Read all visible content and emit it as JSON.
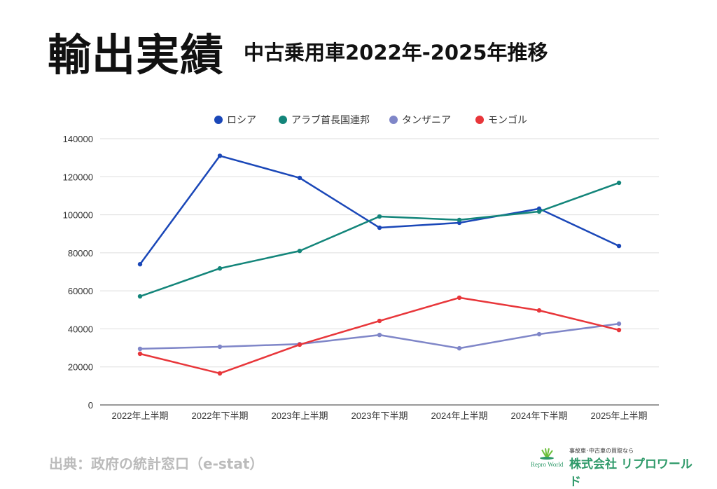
{
  "header": {
    "title": "輸出実績",
    "subtitle": "中古乗用車2022年-2025年推移"
  },
  "footer": {
    "source": "出典：政府の統計窓口（e-stat）",
    "logo_tagline": "事故車･中古車の買取なら",
    "logo_name": "株式会社 リプロワールド",
    "logo_en": "Repro World"
  },
  "chart_data": {
    "type": "line",
    "title": "",
    "xlabel": "",
    "ylabel": "",
    "categories": [
      "2022年上半期",
      "2022年下半期",
      "2023年上半期",
      "2023年下半期",
      "2024年上半期",
      "2024年下半期",
      "2025年上半期"
    ],
    "ylim": [
      0,
      140000
    ],
    "yticks": [
      0,
      20000,
      40000,
      60000,
      80000,
      100000,
      120000,
      140000
    ],
    "grid": true,
    "legend_position": "top-center",
    "series": [
      {
        "name": "ロシア",
        "color": "#1a47b8",
        "values": [
          74000,
          131000,
          119400,
          93200,
          95800,
          103200,
          83600
        ]
      },
      {
        "name": "アラブ首長国連邦",
        "color": "#13857a",
        "values": [
          57100,
          71800,
          81000,
          99100,
          97300,
          101700,
          116800
        ]
      },
      {
        "name": "タンザニア",
        "color": "#7f86c8",
        "values": [
          29500,
          30600,
          32000,
          36800,
          29800,
          37200,
          42700
        ]
      },
      {
        "name": "モンゴル",
        "color": "#e8363a",
        "values": [
          26900,
          16600,
          31700,
          44200,
          56400,
          49700,
          39400
        ]
      }
    ]
  }
}
